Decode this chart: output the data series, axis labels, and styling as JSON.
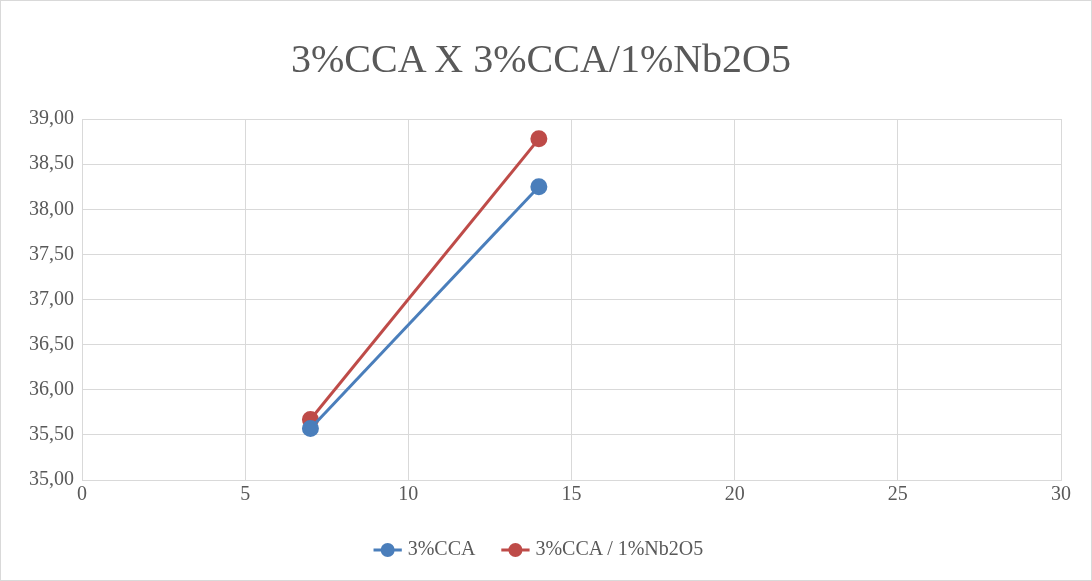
{
  "chart_data": {
    "type": "line",
    "title": "3%CCA X 3%CCA/1%Nb2O5",
    "x": [
      7,
      14
    ],
    "series": [
      {
        "name": "3%CCA",
        "color": "#4a7ebb",
        "values": [
          35.57,
          38.25
        ]
      },
      {
        "name": "3%CCA / 1%Nb2O5",
        "color": "#be4b48",
        "values": [
          35.67,
          38.78
        ]
      }
    ],
    "xlim": [
      0,
      30
    ],
    "xticks": [
      0,
      5,
      10,
      15,
      20,
      25,
      30
    ],
    "ylim": [
      35,
      39
    ],
    "yticks": [
      {
        "value": 35,
        "label": "35,00"
      },
      {
        "value": 35.5,
        "label": "35,50"
      },
      {
        "value": 36,
        "label": "36,00"
      },
      {
        "value": 36.5,
        "label": "36,50"
      },
      {
        "value": 37,
        "label": "37,00"
      },
      {
        "value": 37.5,
        "label": "37,50"
      },
      {
        "value": 38,
        "label": "38,00"
      },
      {
        "value": 38.5,
        "label": "38,50"
      },
      {
        "value": 39,
        "label": "39,00"
      }
    ],
    "grid": true,
    "legend": "bottom",
    "marker": "circle",
    "line_style": "solid"
  }
}
